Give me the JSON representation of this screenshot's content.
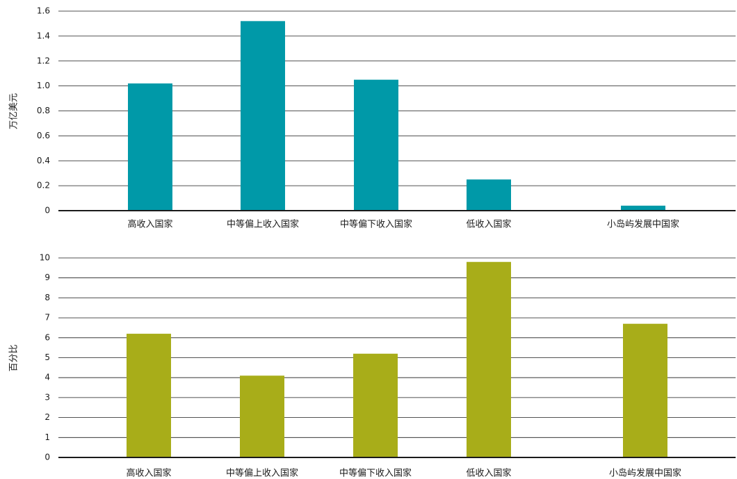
{
  "chart_data": [
    {
      "type": "bar",
      "categories": [
        "高收入国家",
        "中等偏上收入国家",
        "中等偏下收入国家",
        "低收入国家",
        "小岛屿发展中国家"
      ],
      "values": [
        1.02,
        1.52,
        1.05,
        0.25,
        0.04
      ],
      "ylabel": "万亿美元",
      "ylim": [
        0,
        1.6
      ],
      "yticks": [
        "0",
        "0.2",
        "0.4",
        "0.6",
        "0.8",
        "1.0",
        "1.2",
        "1.4",
        "1.6"
      ],
      "color": "#0099A8",
      "grid": true
    },
    {
      "type": "bar",
      "categories": [
        "高收入国家",
        "中等偏上收入国家",
        "中等偏下收入国家",
        "低收入国家",
        "小岛屿发展中国家"
      ],
      "values": [
        6.2,
        4.1,
        5.2,
        9.8,
        6.7
      ],
      "ylabel": "百分比",
      "ylim": [
        0,
        10
      ],
      "yticks": [
        "0",
        "1",
        "2",
        "3",
        "4",
        "5",
        "6",
        "7",
        "8",
        "9",
        "10"
      ],
      "color": "#A8AD19",
      "grid": true
    }
  ]
}
